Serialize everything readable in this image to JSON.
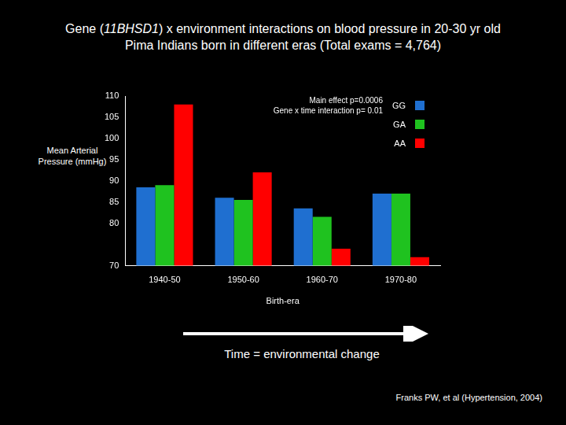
{
  "chart_data": {
    "type": "bar",
    "title": "Gene (11BHSD1)  x environment interactions on blood pressure in 20-30 yr old",
    "subtitle": "Pima Indians born in different eras (Total exams = 4,764)",
    "y_label": "Mean Arterial Pressure (mmHg)",
    "x_label": "Birth-era",
    "categories": [
      "1940-50",
      "1950-60",
      "1960-70",
      "1970-80"
    ],
    "series": [
      {
        "name": "GG",
        "color": "#1f6fd0",
        "values": [
          88.5,
          86,
          83.5,
          87
        ]
      },
      {
        "name": "GA",
        "color": "#1fc21f",
        "values": [
          89,
          85.5,
          81.5,
          87
        ]
      },
      {
        "name": "AA",
        "color": "#ff0000",
        "values": [
          108,
          92,
          74,
          72
        ]
      }
    ],
    "ylim": [
      70,
      110
    ],
    "yticks": [
      70,
      80,
      85,
      90,
      95,
      100,
      105,
      110
    ],
    "grid": false,
    "legend": "upper right",
    "annotations": [
      "Main effect p=0.0006",
      "Gene x time interaction p= 0.01",
      "Time = environmental change"
    ],
    "source": "Franks PW, et al (Hypertension, 2004)"
  }
}
